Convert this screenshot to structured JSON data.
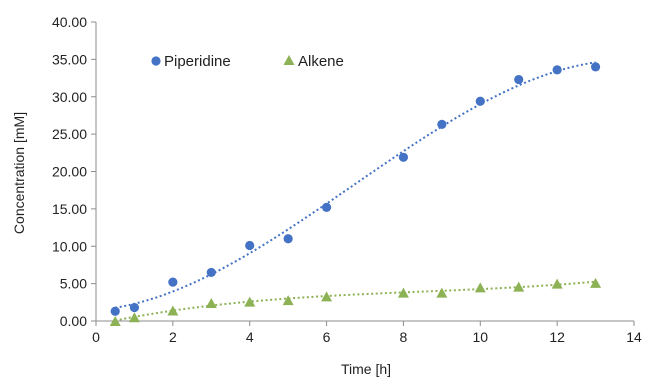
{
  "chart_data": {
    "type": "scatter",
    "xlabel": "Time [h]",
    "ylabel": "Concentration  [mM]",
    "xlim": [
      0,
      14
    ],
    "ylim": [
      0,
      40
    ],
    "x_ticks": [
      "0",
      "2",
      "4",
      "6",
      "8",
      "10",
      "12",
      "14"
    ],
    "y_ticks": [
      "0.00",
      "5.00",
      "10.00",
      "15.00",
      "20.00",
      "25.00",
      "30.00",
      "35.00",
      "40.00"
    ],
    "grid": false,
    "legend_position": "top-left",
    "series": [
      {
        "name": "Piperidine",
        "marker": "circle",
        "color": "#4472C4",
        "trendline": "dotted",
        "x": [
          0.5,
          1,
          2,
          3,
          4,
          5,
          6,
          8,
          9,
          10,
          11,
          12,
          13
        ],
        "y": [
          1.3,
          1.8,
          5.2,
          6.5,
          10.1,
          11.0,
          15.2,
          21.9,
          26.3,
          29.4,
          32.3,
          33.6,
          34.0
        ]
      },
      {
        "name": "Alkene",
        "marker": "triangle",
        "color": "#8DB255",
        "trendline": "dotted",
        "x": [
          0.5,
          1,
          2,
          3,
          4,
          5,
          6,
          8,
          9,
          10,
          11,
          12,
          13
        ],
        "y": [
          0.0,
          0.5,
          1.4,
          2.4,
          2.6,
          2.8,
          3.3,
          3.8,
          3.8,
          4.5,
          4.6,
          5.0,
          5.1
        ]
      }
    ]
  }
}
